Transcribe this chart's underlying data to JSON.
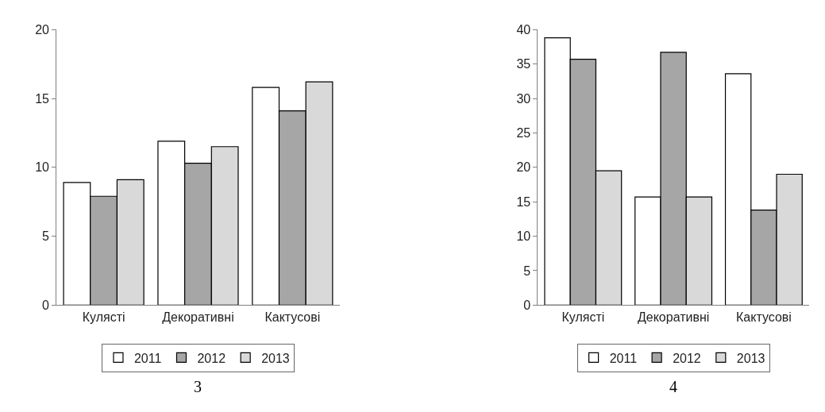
{
  "chart_data": [
    {
      "type": "bar",
      "title": "3",
      "categories": [
        "Кулясті",
        "Декоративні",
        "Кактусові"
      ],
      "series": [
        {
          "name": "2011",
          "color": "#ffffff",
          "values": [
            8.9,
            11.9,
            15.8
          ]
        },
        {
          "name": "2012",
          "color": "#a6a6a6",
          "values": [
            7.9,
            10.3,
            14.1
          ]
        },
        {
          "name": "2013",
          "color": "#d9d9d9",
          "values": [
            9.1,
            11.5,
            16.2
          ]
        }
      ],
      "ylim": [
        0,
        20
      ],
      "yticks": [
        0,
        5,
        10,
        15,
        20
      ],
      "legend": "bottom"
    },
    {
      "type": "bar",
      "title": "4",
      "categories": [
        "Кулясті",
        "Декоративні",
        "Кактусові"
      ],
      "series": [
        {
          "name": "2011",
          "color": "#ffffff",
          "values": [
            38.8,
            15.7,
            33.6
          ]
        },
        {
          "name": "2012",
          "color": "#a6a6a6",
          "values": [
            35.7,
            36.7,
            13.8
          ]
        },
        {
          "name": "2013",
          "color": "#d9d9d9",
          "values": [
            19.5,
            15.7,
            19.0
          ]
        }
      ],
      "ylim": [
        0,
        40
      ],
      "yticks": [
        0,
        5,
        10,
        15,
        20,
        25,
        30,
        35,
        40
      ],
      "legend": "bottom"
    }
  ]
}
